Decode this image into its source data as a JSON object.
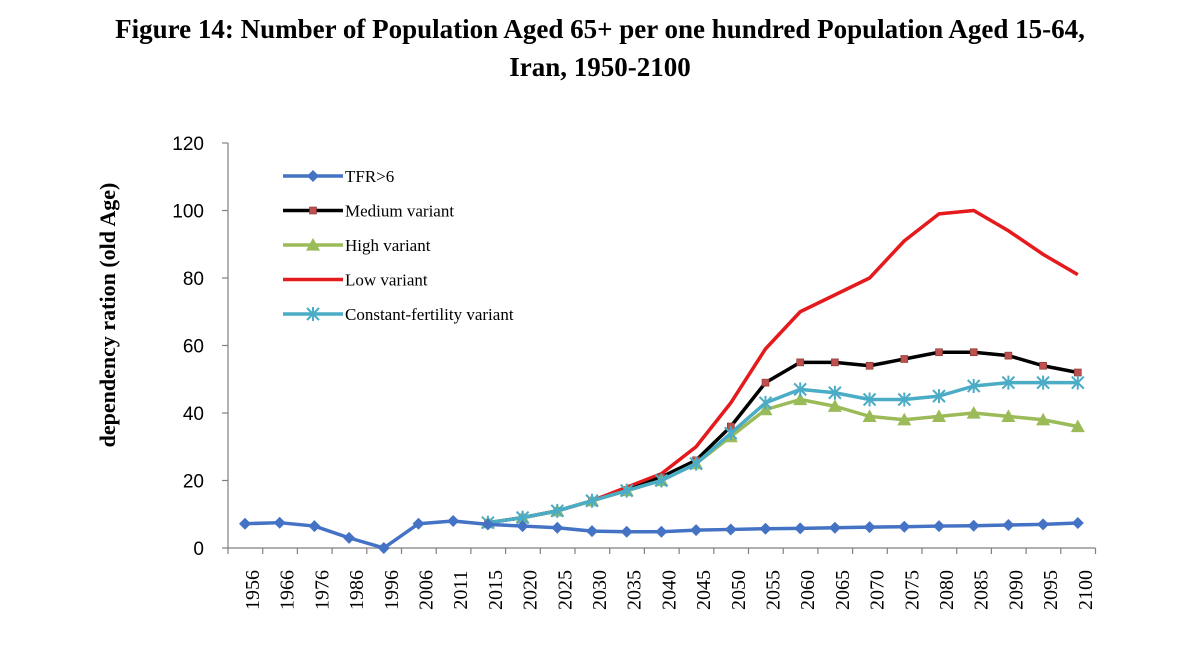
{
  "title_line1": "Figure 14: Number of Population Aged 65+ per one hundred Population Aged 15-64,",
  "title_line2": "Iran, 1950-2100",
  "chart_data": {
    "type": "line",
    "title": "Figure 14: Number of Population Aged 65+ per one hundred Population Aged 15-64, Iran, 1950-2100",
    "xlabel": "",
    "ylabel": "dependency ration (old Age)",
    "ylim": [
      0,
      120
    ],
    "yticks": [
      0,
      20,
      40,
      60,
      80,
      100,
      120
    ],
    "legend_position": "top-left",
    "categories": [
      "1956",
      "1966",
      "1976",
      "1986",
      "1996",
      "2006",
      "2011",
      "2015",
      "2020",
      "2025",
      "2030",
      "2035",
      "2040",
      "2045",
      "2050",
      "2055",
      "2060",
      "2065",
      "2070",
      "2075",
      "2080",
      "2085",
      "2090",
      "2095",
      "2100"
    ],
    "series": [
      {
        "name": "TFR>6",
        "color": "#4472C4",
        "marker": "diamond",
        "values": [
          7.2,
          7.5,
          6.5,
          3,
          0,
          7.2,
          8,
          7,
          6.5,
          6,
          5,
          4.8,
          4.8,
          5.3,
          5.5,
          5.7,
          5.8,
          6,
          6.2,
          6.3,
          6.5,
          6.6,
          6.8,
          7,
          7.4
        ]
      },
      {
        "name": "Medium variant",
        "color": "#000000",
        "marker": "square",
        "values": [
          null,
          null,
          null,
          null,
          null,
          null,
          null,
          7.5,
          9,
          11,
          14,
          17,
          21,
          26,
          36,
          49,
          55,
          55,
          54,
          56,
          58,
          58,
          57,
          54,
          52
        ]
      },
      {
        "name": "High variant",
        "color": "#9BBB59",
        "marker": "triangle",
        "values": [
          null,
          null,
          null,
          null,
          null,
          null,
          null,
          7.5,
          9,
          11,
          14,
          17,
          20,
          25,
          33,
          41,
          44,
          42,
          39,
          38,
          39,
          40,
          39,
          38,
          36
        ]
      },
      {
        "name": "Low variant",
        "color": "#E41A1C",
        "marker": "none",
        "values": [
          null,
          null,
          null,
          null,
          null,
          null,
          null,
          7.5,
          9,
          11,
          14,
          18,
          22,
          30,
          43,
          59,
          70,
          75,
          80,
          91,
          99,
          100,
          94,
          87,
          81
        ]
      },
      {
        "name": "Constant-fertility variant",
        "color": "#4BACC6",
        "marker": "star",
        "values": [
          null,
          null,
          null,
          null,
          null,
          null,
          null,
          7.5,
          9,
          11,
          14,
          17,
          20,
          25,
          34,
          43,
          47,
          46,
          44,
          44,
          45,
          48,
          49,
          49,
          49
        ]
      }
    ]
  }
}
